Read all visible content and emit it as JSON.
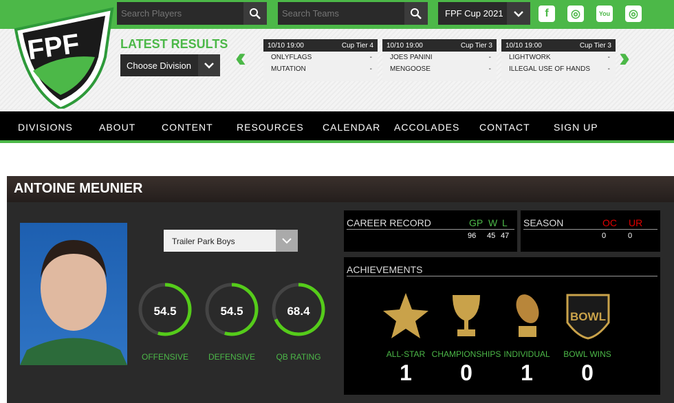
{
  "search": {
    "players_placeholder": "Search Players",
    "teams_placeholder": "Search Teams",
    "cup": "FPF Cup 2021"
  },
  "social": [
    "facebook-icon",
    "instagram-icon",
    "youtube-icon",
    "instagram-icon"
  ],
  "logo_text": "FPF",
  "latest_results": {
    "title": "LATEST RESULTS",
    "division": "Choose Division",
    "games": [
      {
        "time": "10/10 19:00",
        "tier": "Cup Tier 4",
        "home": "ONLYFLAGS",
        "home_score": "-",
        "away": "MUTATION",
        "away_score": "-"
      },
      {
        "time": "10/10 19:00",
        "tier": "Cup Tier 3",
        "home": "JOES PANINI",
        "home_score": "-",
        "away": "MENGOOSE",
        "away_score": "-"
      },
      {
        "time": "10/10 19:00",
        "tier": "Cup Tier 3",
        "home": "LIGHTWORK",
        "home_score": "-",
        "away": "ILLEGAL USE OF HANDS",
        "away_score": "-"
      }
    ]
  },
  "nav": [
    "DIVISIONS",
    "ABOUT",
    "CONTENT",
    "RESOURCES",
    "CALENDAR",
    "ACCOLADES",
    "CONTACT",
    "SIGN UP"
  ],
  "player": {
    "name": "ANTOINE MEUNIER",
    "team": "Trailer Park Boys",
    "ratings": [
      {
        "label": "OFFENSIVE",
        "value": "54.5"
      },
      {
        "label": "DEFENSIVE",
        "value": "54.5"
      },
      {
        "label": "QB RATING",
        "value": "68.4"
      }
    ],
    "career": {
      "title": "CAREER RECORD",
      "cols": [
        "GP",
        "W",
        "L"
      ],
      "vals": [
        "96",
        "45",
        "47"
      ]
    },
    "season": {
      "title": "SEASON",
      "cols": [
        "OC",
        "UR"
      ],
      "vals": [
        "0",
        "0"
      ]
    },
    "achievements": {
      "title": "ACHIEVEMENTS",
      "items": [
        {
          "label": "ALL-STAR",
          "count": "1"
        },
        {
          "label": "CHAMPIONSHIPS",
          "count": "0"
        },
        {
          "label": "INDIVIDUAL",
          "count": "1"
        },
        {
          "label": "BOWL WINS",
          "count": "0"
        }
      ]
    }
  },
  "colors": {
    "accent": "#4cb848",
    "dark": "#2a2a2a",
    "red": "#e00000"
  }
}
